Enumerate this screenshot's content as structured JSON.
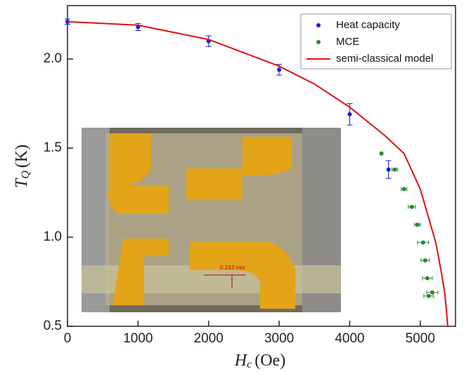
{
  "chart_data": {
    "type": "scatter",
    "xlabel": {
      "symbol": "H",
      "sub": "c",
      "unit": "(Oe)"
    },
    "ylabel": {
      "symbol": "T",
      "sub": "Q",
      "unit": "(K)"
    },
    "xlim": [
      0,
      5500
    ],
    "xticks": [
      0,
      1000,
      2000,
      3000,
      4000,
      5000
    ],
    "ylim": [
      0.5,
      2.3
    ],
    "yticks": [
      0.5,
      {
        "value": 1,
        "label": "1.0"
      },
      1.5,
      {
        "value": 2,
        "label": "2.0"
      }
    ],
    "legend": "top-right",
    "inset_label": "0.243 mm",
    "series": [
      {
        "name": "Heat capacity",
        "color": "#1a1ad8",
        "mode": "markers",
        "x": [
          0,
          1000,
          2000,
          3000,
          4000,
          4550
        ],
        "values": [
          2.21,
          2.18,
          2.1,
          1.94,
          1.69,
          1.38
        ],
        "errors": [
          0.015,
          0.02,
          0.03,
          0.03,
          0.06,
          0.05
        ]
      },
      {
        "name": "MCE",
        "color": "#2a8a2a",
        "mode": "markers",
        "x": [
          4450,
          4640,
          4770,
          4880,
          4960,
          5040,
          5070,
          5100,
          5170,
          5120
        ],
        "values": [
          1.47,
          1.38,
          1.27,
          1.17,
          1.07,
          0.97,
          0.87,
          0.77,
          0.69,
          0.67
        ],
        "xerrors": [
          0,
          40,
          40,
          50,
          40,
          80,
          60,
          70,
          80,
          70
        ]
      },
      {
        "name": "semi-classical model",
        "color": "#e01010",
        "mode": "line",
        "x": [
          0,
          1000,
          2000,
          3000,
          3500,
          4000,
          4500,
          4770,
          5000,
          5220,
          5300,
          5350,
          5390
        ],
        "values": [
          2.21,
          2.19,
          2.11,
          1.96,
          1.86,
          1.73,
          1.57,
          1.47,
          1.27,
          0.97,
          0.8,
          0.68,
          0.5
        ]
      }
    ]
  }
}
